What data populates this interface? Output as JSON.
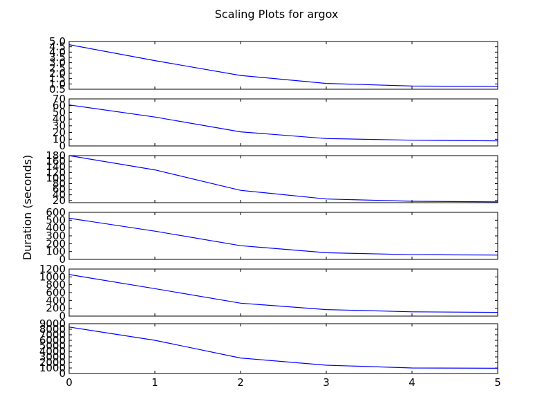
{
  "figure": {
    "title": "Scaling Plots for argox",
    "ylabel": "Duration (seconds)",
    "line_color": "#0000ff",
    "axis_color": "#000000",
    "background": "#ffffff"
  },
  "chart_data": [
    {
      "type": "line",
      "x": [
        0,
        1,
        2,
        3,
        4,
        5
      ],
      "series": [
        {
          "values": [
            4.7,
            3.2,
            1.8,
            1.05,
            0.8,
            0.75
          ]
        }
      ],
      "ylim": [
        0.5,
        5.0
      ],
      "yticks": [
        0.5,
        1.0,
        1.5,
        2.0,
        2.5,
        3.0,
        3.5,
        4.0,
        4.5,
        5.0
      ],
      "ytick_labels": [
        "0.5",
        "1.0",
        "1.5",
        "2.0",
        "2.5",
        "3.0",
        "3.5",
        "4.0",
        "4.5",
        "5.0"
      ],
      "xticks": [
        0,
        1,
        2,
        3,
        4,
        5
      ],
      "xtick_labels": []
    },
    {
      "type": "line",
      "x": [
        0,
        1,
        2,
        3,
        4,
        5
      ],
      "series": [
        {
          "values": [
            61,
            43,
            21,
            11,
            8.5,
            7.5
          ]
        }
      ],
      "ylim": [
        0,
        70
      ],
      "yticks": [
        0,
        10,
        20,
        30,
        40,
        50,
        60,
        70
      ],
      "ytick_labels": [
        "0",
        "10",
        "20",
        "30",
        "40",
        "50",
        "60",
        "70"
      ],
      "xticks": [
        0,
        1,
        2,
        3,
        4,
        5
      ],
      "xtick_labels": []
    },
    {
      "type": "line",
      "x": [
        0,
        1,
        2,
        3,
        4,
        5
      ],
      "series": [
        {
          "values": [
            180,
            129,
            56,
            25,
            17,
            15
          ]
        }
      ],
      "ylim": [
        12,
        180
      ],
      "yticks": [
        20,
        40,
        60,
        80,
        100,
        120,
        140,
        160,
        180
      ],
      "ytick_labels": [
        "20",
        "40",
        "60",
        "80",
        "100",
        "120",
        "140",
        "160",
        "180"
      ],
      "xticks": [
        0,
        1,
        2,
        3,
        4,
        5
      ],
      "xtick_labels": []
    },
    {
      "type": "line",
      "x": [
        0,
        1,
        2,
        3,
        4,
        5
      ],
      "series": [
        {
          "values": [
            525,
            360,
            175,
            85,
            60,
            55
          ]
        }
      ],
      "ylim": [
        0,
        600
      ],
      "yticks": [
        0,
        100,
        200,
        300,
        400,
        500,
        600
      ],
      "ytick_labels": [
        "0",
        "100",
        "200",
        "300",
        "400",
        "500",
        "600"
      ],
      "xticks": [
        0,
        1,
        2,
        3,
        4,
        5
      ],
      "xtick_labels": []
    },
    {
      "type": "line",
      "x": [
        0,
        1,
        2,
        3,
        4,
        5
      ],
      "series": [
        {
          "values": [
            1060,
            700,
            330,
            165,
            110,
            95
          ]
        }
      ],
      "ylim": [
        0,
        1200
      ],
      "yticks": [
        0,
        200,
        400,
        600,
        800,
        1000,
        1200
      ],
      "ytick_labels": [
        "0",
        "200",
        "400",
        "600",
        "800",
        "1000",
        "1200"
      ],
      "xticks": [
        0,
        1,
        2,
        3,
        4,
        5
      ],
      "xtick_labels": []
    },
    {
      "type": "line",
      "x": [
        0,
        1,
        2,
        3,
        4,
        5
      ],
      "series": [
        {
          "values": [
            8400,
            6000,
            2800,
            1500,
            1000,
            950
          ]
        }
      ],
      "ylim": [
        0,
        9000
      ],
      "yticks": [
        0,
        1000,
        2000,
        3000,
        4000,
        5000,
        6000,
        7000,
        8000,
        9000
      ],
      "ytick_labels": [
        "0",
        "1000",
        "2000",
        "3000",
        "4000",
        "5000",
        "6000",
        "7000",
        "8000",
        "9000"
      ],
      "xticks": [
        0,
        1,
        2,
        3,
        4,
        5
      ],
      "xtick_labels": [
        "0",
        "1",
        "2",
        "3",
        "4",
        "5"
      ]
    }
  ]
}
